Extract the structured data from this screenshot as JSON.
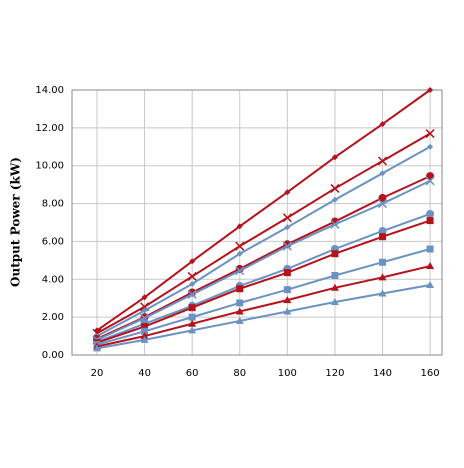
{
  "chart_data": {
    "type": "line",
    "y_label": "Output Power (kW)",
    "x": [
      20,
      40,
      60,
      80,
      100,
      120,
      140,
      160
    ],
    "xlim": [
      9.5,
      165
    ],
    "xticks": [
      20,
      40,
      60,
      80,
      100,
      120,
      140,
      160
    ],
    "ylim": [
      0,
      14
    ],
    "yticks": [
      {
        "value": 0,
        "label": "0.00"
      },
      {
        "value": 2,
        "label": "2.00"
      },
      {
        "value": 4,
        "label": "4.00"
      },
      {
        "value": 6,
        "label": "6.00"
      },
      {
        "value": 8,
        "label": "8.00"
      },
      {
        "value": 10,
        "label": "10.00"
      },
      {
        "value": 12,
        "label": "12.00"
      },
      {
        "value": 14,
        "label": "14.00"
      }
    ],
    "grid": true,
    "series": [
      {
        "color": "#b5121b",
        "marker": "diamond",
        "values": [
          1.3,
          3.05,
          4.95,
          6.8,
          8.6,
          10.45,
          12.2,
          14.0
        ]
      },
      {
        "color": "#b5121b",
        "marker": "x",
        "values": [
          1.15,
          2.55,
          4.15,
          5.75,
          7.25,
          8.8,
          10.25,
          11.7
        ]
      },
      {
        "color": "#6a93c4",
        "marker": "diamond",
        "values": [
          1.0,
          2.35,
          3.75,
          5.35,
          6.75,
          8.2,
          9.6,
          11.0
        ]
      },
      {
        "color": "#b5121b",
        "marker": "circle",
        "values": [
          0.85,
          2.0,
          3.3,
          4.55,
          5.85,
          7.05,
          8.3,
          9.45
        ]
      },
      {
        "color": "#6a93c4",
        "marker": "x",
        "values": [
          0.8,
          1.95,
          3.2,
          4.45,
          5.75,
          6.9,
          8.0,
          9.2
        ]
      },
      {
        "color": "#6a93c4",
        "marker": "circle",
        "values": [
          0.7,
          1.65,
          2.6,
          3.65,
          4.55,
          5.6,
          6.55,
          7.45
        ]
      },
      {
        "color": "#b5121b",
        "marker": "square",
        "values": [
          0.65,
          1.5,
          2.5,
          3.5,
          4.35,
          5.35,
          6.25,
          7.1
        ]
      },
      {
        "color": "#6a93c4",
        "marker": "square",
        "values": [
          0.55,
          1.25,
          2.0,
          2.75,
          3.45,
          4.2,
          4.9,
          5.6
        ]
      },
      {
        "color": "#b5121b",
        "marker": "triangle",
        "values": [
          0.45,
          1.0,
          1.65,
          2.3,
          2.9,
          3.55,
          4.1,
          4.7
        ]
      },
      {
        "color": "#6a93c4",
        "marker": "triangle",
        "values": [
          0.35,
          0.8,
          1.3,
          1.8,
          2.3,
          2.8,
          3.25,
          3.7
        ]
      }
    ]
  }
}
